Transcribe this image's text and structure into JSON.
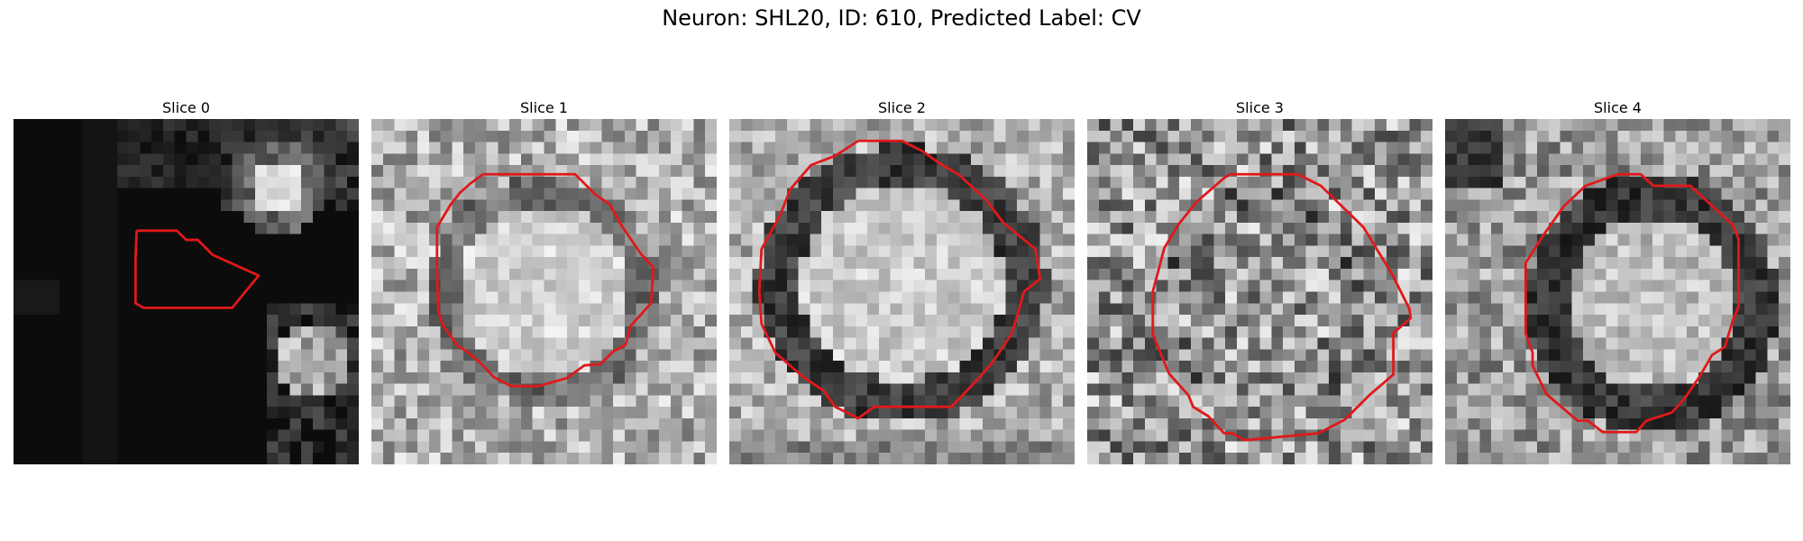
{
  "figure": {
    "title": "Neuron: SHL20, ID: 610, Predicted Label: CV",
    "contour_color": "#e0191b"
  },
  "panels": [
    {
      "title": "Slice 0",
      "style": "dark"
    },
    {
      "title": "Slice 1",
      "style": "bright-center"
    },
    {
      "title": "Slice 2",
      "style": "ring-bright"
    },
    {
      "title": "Slice 3",
      "style": "noisy"
    },
    {
      "title": "Slice 4",
      "style": "dark-ring"
    }
  ]
}
